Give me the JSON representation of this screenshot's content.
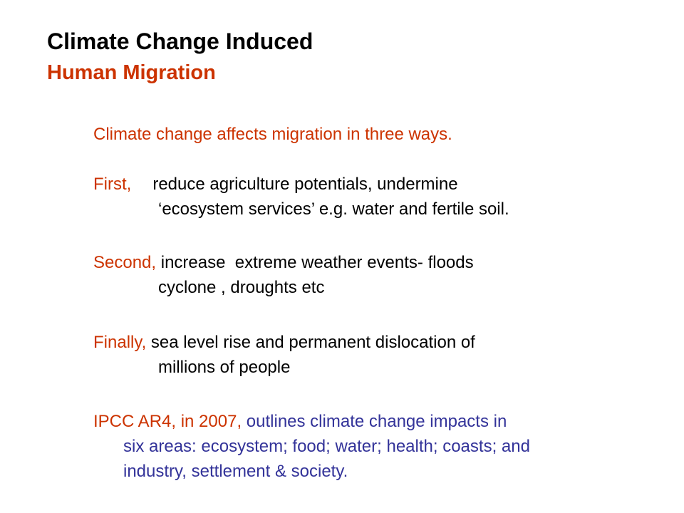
{
  "slide": {
    "title": {
      "line1": "Climate Change Induced",
      "line2": "Human Migration"
    },
    "intro": "Climate change affects migration in three ways.",
    "first": {
      "label": "First,",
      "line1": "reduce agriculture potentials, undermine",
      "line2": "‘ecosystem services’ e.g. water and fertile soil."
    },
    "second": {
      "label": "Second,",
      "line1": " increase  extreme weather events- floods",
      "line2": "cyclone , droughts etc"
    },
    "finally": {
      "label": "Finally,",
      "line1": " sea level rise and permanent dislocation of",
      "line2": "millions of people"
    },
    "ipcc": {
      "label": "IPCC AR4, in 2007,",
      "line1": " outlines climate change impacts in",
      "line2": "six areas: ecosystem; food; water; health; coasts; and",
      "line3": "industry, settlement & society."
    },
    "colors": {
      "title": "#000000",
      "accent": "#cc3300",
      "body": "#000000",
      "ipcc_text": "#333399"
    }
  }
}
